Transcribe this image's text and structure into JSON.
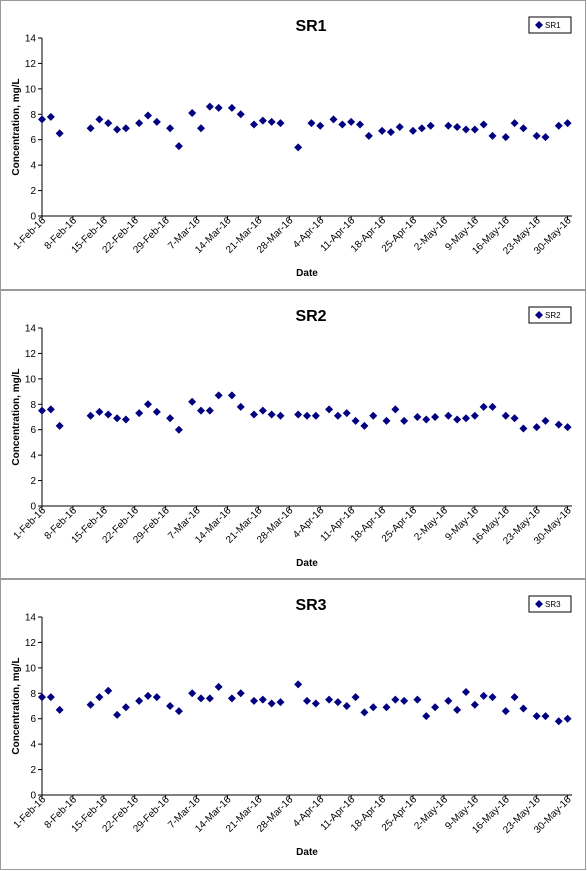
{
  "chart_data": [
    {
      "type": "scatter",
      "title": "SR1",
      "xlabel": "Date",
      "ylabel": "Concentration, mg/L",
      "ylim": [
        0,
        14
      ],
      "yticks": [
        "0",
        "2",
        "4",
        "6",
        "8",
        "10",
        "12",
        "14"
      ],
      "xlim": [
        "2016-02-01",
        "2016-05-31"
      ],
      "xtick_labels": [
        "1-Feb-16",
        "8-Feb-16",
        "15-Feb-16",
        "22-Feb-16",
        "29-Feb-16",
        "7-Mar-16",
        "14-Mar-16",
        "21-Mar-16",
        "28-Mar-16",
        "4-Apr-16",
        "11-Apr-16",
        "18-Apr-16",
        "25-Apr-16",
        "2-May-16",
        "9-May-16",
        "16-May-16",
        "23-May-16",
        "30-May-16"
      ],
      "grid": false,
      "legend": "top-right",
      "marker_color": "#000080",
      "series": [
        {
          "name": "SR1",
          "x": [
            "2016-02-01",
            "2016-02-03",
            "2016-02-05",
            "2016-02-12",
            "2016-02-14",
            "2016-02-16",
            "2016-02-18",
            "2016-02-20",
            "2016-02-23",
            "2016-02-25",
            "2016-02-27",
            "2016-03-01",
            "2016-03-03",
            "2016-03-06",
            "2016-03-08",
            "2016-03-10",
            "2016-03-12",
            "2016-03-15",
            "2016-03-17",
            "2016-03-20",
            "2016-03-22",
            "2016-03-24",
            "2016-03-26",
            "2016-03-30",
            "2016-04-02",
            "2016-04-04",
            "2016-04-07",
            "2016-04-09",
            "2016-04-11",
            "2016-04-13",
            "2016-04-15",
            "2016-04-18",
            "2016-04-20",
            "2016-04-22",
            "2016-04-25",
            "2016-04-27",
            "2016-04-29",
            "2016-05-03",
            "2016-05-05",
            "2016-05-07",
            "2016-05-09",
            "2016-05-11",
            "2016-05-13",
            "2016-05-16",
            "2016-05-18",
            "2016-05-20",
            "2016-05-23",
            "2016-05-25",
            "2016-05-28",
            "2016-05-30"
          ],
          "y": [
            7.6,
            7.8,
            6.5,
            6.9,
            7.6,
            7.3,
            6.8,
            6.9,
            7.3,
            7.9,
            7.4,
            6.9,
            5.5,
            8.1,
            6.9,
            8.6,
            8.5,
            8.5,
            8.0,
            7.2,
            7.5,
            7.4,
            7.3,
            5.4,
            7.3,
            7.1,
            7.6,
            7.2,
            7.4,
            7.2,
            6.3,
            6.7,
            6.6,
            7.0,
            6.7,
            6.9,
            7.1,
            7.1,
            7.0,
            6.8,
            6.8,
            7.2,
            6.3,
            6.2,
            7.3,
            6.9,
            6.3,
            6.2,
            7.1,
            7.3
          ]
        }
      ]
    },
    {
      "type": "scatter",
      "title": "SR2",
      "xlabel": "Date",
      "ylabel": "Concentration, mg/L",
      "ylim": [
        0,
        14
      ],
      "yticks": [
        "0",
        "2",
        "4",
        "6",
        "8",
        "10",
        "12",
        "14"
      ],
      "xlim": [
        "2016-02-01",
        "2016-05-31"
      ],
      "xtick_labels": [
        "1-Feb-16",
        "8-Feb-16",
        "15-Feb-16",
        "22-Feb-16",
        "29-Feb-16",
        "7-Mar-16",
        "14-Mar-16",
        "21-Mar-16",
        "28-Mar-16",
        "4-Apr-16",
        "11-Apr-16",
        "18-Apr-16",
        "25-Apr-16",
        "2-May-16",
        "9-May-16",
        "16-May-16",
        "23-May-16",
        "30-May-16"
      ],
      "grid": false,
      "legend": "top-right",
      "marker_color": "#000080",
      "series": [
        {
          "name": "SR2",
          "x": [
            "2016-02-01",
            "2016-02-03",
            "2016-02-05",
            "2016-02-12",
            "2016-02-14",
            "2016-02-16",
            "2016-02-18",
            "2016-02-20",
            "2016-02-23",
            "2016-02-25",
            "2016-02-27",
            "2016-03-01",
            "2016-03-03",
            "2016-03-06",
            "2016-03-08",
            "2016-03-10",
            "2016-03-12",
            "2016-03-15",
            "2016-03-17",
            "2016-03-20",
            "2016-03-22",
            "2016-03-24",
            "2016-03-26",
            "2016-03-30",
            "2016-04-01",
            "2016-04-03",
            "2016-04-06",
            "2016-04-08",
            "2016-04-10",
            "2016-04-12",
            "2016-04-14",
            "2016-04-16",
            "2016-04-19",
            "2016-04-21",
            "2016-04-23",
            "2016-04-26",
            "2016-04-28",
            "2016-04-30",
            "2016-05-03",
            "2016-05-05",
            "2016-05-07",
            "2016-05-09",
            "2016-05-11",
            "2016-05-13",
            "2016-05-16",
            "2016-05-18",
            "2016-05-20",
            "2016-05-23",
            "2016-05-25",
            "2016-05-28",
            "2016-05-30"
          ],
          "y": [
            7.5,
            7.6,
            6.3,
            7.1,
            7.4,
            7.2,
            6.9,
            6.8,
            7.3,
            8.0,
            7.4,
            6.9,
            6.0,
            8.2,
            7.5,
            7.5,
            8.7,
            8.7,
            7.8,
            7.2,
            7.5,
            7.2,
            7.1,
            7.2,
            7.1,
            7.1,
            7.6,
            7.1,
            7.3,
            6.7,
            6.3,
            7.1,
            6.7,
            7.6,
            6.7,
            7.0,
            6.8,
            7.0,
            7.1,
            6.8,
            6.9,
            7.1,
            7.8,
            7.8,
            7.1,
            6.9,
            6.1,
            6.2,
            6.7,
            6.4,
            6.2
          ]
        }
      ]
    },
    {
      "type": "scatter",
      "title": "SR3",
      "xlabel": "Date",
      "ylabel": "Concentration, mg/L",
      "ylim": [
        0,
        14
      ],
      "yticks": [
        "0",
        "2",
        "4",
        "6",
        "8",
        "10",
        "12",
        "14"
      ],
      "xlim": [
        "2016-02-01",
        "2016-05-31"
      ],
      "xtick_labels": [
        "1-Feb-16",
        "8-Feb-16",
        "15-Feb-16",
        "22-Feb-16",
        "29-Feb-16",
        "7-Mar-16",
        "14-Mar-16",
        "21-Mar-16",
        "28-Mar-16",
        "4-Apr-16",
        "11-Apr-16",
        "18-Apr-16",
        "25-Apr-16",
        "2-May-16",
        "9-May-16",
        "16-May-16",
        "23-May-16",
        "30-May-16"
      ],
      "grid": false,
      "legend": "top-right",
      "marker_color": "#000080",
      "series": [
        {
          "name": "SR3",
          "x": [
            "2016-02-01",
            "2016-02-03",
            "2016-02-05",
            "2016-02-12",
            "2016-02-14",
            "2016-02-16",
            "2016-02-18",
            "2016-02-20",
            "2016-02-23",
            "2016-02-25",
            "2016-02-27",
            "2016-03-01",
            "2016-03-03",
            "2016-03-06",
            "2016-03-08",
            "2016-03-10",
            "2016-03-12",
            "2016-03-15",
            "2016-03-17",
            "2016-03-20",
            "2016-03-22",
            "2016-03-24",
            "2016-03-26",
            "2016-03-30",
            "2016-04-01",
            "2016-04-03",
            "2016-04-06",
            "2016-04-08",
            "2016-04-10",
            "2016-04-12",
            "2016-04-14",
            "2016-04-16",
            "2016-04-19",
            "2016-04-21",
            "2016-04-23",
            "2016-04-26",
            "2016-04-28",
            "2016-04-30",
            "2016-05-03",
            "2016-05-05",
            "2016-05-07",
            "2016-05-09",
            "2016-05-11",
            "2016-05-13",
            "2016-05-16",
            "2016-05-18",
            "2016-05-20",
            "2016-05-23",
            "2016-05-25",
            "2016-05-28",
            "2016-05-30"
          ],
          "y": [
            7.7,
            7.7,
            6.7,
            7.1,
            7.7,
            8.2,
            6.3,
            6.9,
            7.4,
            7.8,
            7.7,
            7.0,
            6.6,
            8.0,
            7.6,
            7.6,
            8.5,
            7.6,
            8.0,
            7.4,
            7.5,
            7.2,
            7.3,
            8.7,
            7.4,
            7.2,
            7.5,
            7.3,
            7.0,
            7.7,
            6.5,
            6.9,
            6.9,
            7.5,
            7.4,
            7.5,
            6.2,
            6.9,
            7.4,
            6.7,
            8.1,
            7.1,
            7.8,
            7.7,
            6.6,
            7.7,
            6.8,
            6.2,
            6.2,
            5.8,
            6.0
          ]
        }
      ]
    }
  ]
}
